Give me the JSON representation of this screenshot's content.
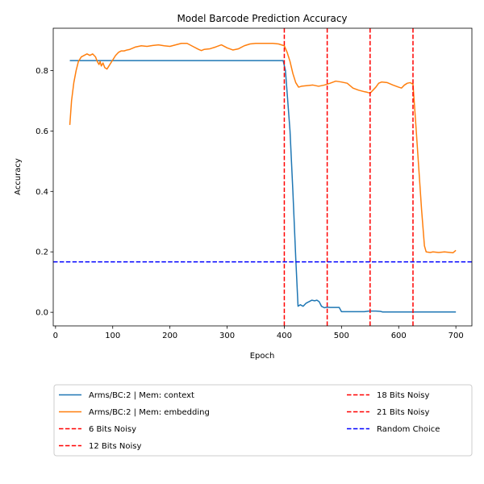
{
  "chart_data": {
    "type": "line",
    "title": "Model Barcode Prediction Accuracy",
    "xlabel": "Epoch",
    "ylabel": "Accuracy",
    "xlim": [
      -4,
      728
    ],
    "ylim": [
      -0.045,
      0.94
    ],
    "xticks": [
      0,
      100,
      200,
      300,
      400,
      500,
      600,
      700
    ],
    "yticks": [
      0.0,
      0.2,
      0.4,
      0.6,
      0.8
    ],
    "ytick_labels": [
      "0.0",
      "0.2",
      "0.4",
      "0.6",
      "0.8"
    ],
    "grid": false,
    "legend_position": "bottom, two columns",
    "series": [
      {
        "name": "Arms/BC:2 | Mem: context",
        "color": "#1f77b4",
        "style": "solid",
        "points": [
          [
            25,
            0.833
          ],
          [
            100,
            0.833
          ],
          [
            200,
            0.833
          ],
          [
            300,
            0.833
          ],
          [
            398,
            0.833
          ],
          [
            402,
            0.8
          ],
          [
            410,
            0.6
          ],
          [
            415,
            0.4
          ],
          [
            420,
            0.18
          ],
          [
            424,
            0.02
          ],
          [
            428,
            0.025
          ],
          [
            433,
            0.02
          ],
          [
            438,
            0.03
          ],
          [
            443,
            0.035
          ],
          [
            448,
            0.04
          ],
          [
            453,
            0.038
          ],
          [
            457,
            0.04
          ],
          [
            461,
            0.035
          ],
          [
            465,
            0.02
          ],
          [
            470,
            0.015
          ],
          [
            475,
            0.017
          ],
          [
            480,
            0.016
          ],
          [
            490,
            0.016
          ],
          [
            496,
            0.016
          ],
          [
            500,
            0.002
          ],
          [
            520,
            0.002
          ],
          [
            540,
            0.002
          ],
          [
            548,
            0.004
          ],
          [
            560,
            0.004
          ],
          [
            568,
            0.003
          ],
          [
            572,
            0.001
          ],
          [
            600,
            0.001
          ],
          [
            650,
            0.001
          ],
          [
            700,
            0.001
          ]
        ]
      },
      {
        "name": "Arms/BC:2 | Mem: embedding",
        "color": "#ff7f0e",
        "style": "solid",
        "points": [
          [
            25,
            0.62
          ],
          [
            28,
            0.7
          ],
          [
            32,
            0.76
          ],
          [
            36,
            0.8
          ],
          [
            40,
            0.83
          ],
          [
            45,
            0.845
          ],
          [
            50,
            0.85
          ],
          [
            55,
            0.855
          ],
          [
            60,
            0.85
          ],
          [
            65,
            0.855
          ],
          [
            70,
            0.845
          ],
          [
            73,
            0.83
          ],
          [
            76,
            0.82
          ],
          [
            78,
            0.83
          ],
          [
            80,
            0.815
          ],
          [
            83,
            0.825
          ],
          [
            86,
            0.81
          ],
          [
            90,
            0.805
          ],
          [
            95,
            0.82
          ],
          [
            100,
            0.835
          ],
          [
            105,
            0.85
          ],
          [
            110,
            0.86
          ],
          [
            115,
            0.865
          ],
          [
            120,
            0.865
          ],
          [
            125,
            0.868
          ],
          [
            130,
            0.87
          ],
          [
            140,
            0.878
          ],
          [
            150,
            0.882
          ],
          [
            160,
            0.88
          ],
          [
            170,
            0.883
          ],
          [
            180,
            0.885
          ],
          [
            190,
            0.882
          ],
          [
            200,
            0.88
          ],
          [
            210,
            0.885
          ],
          [
            220,
            0.89
          ],
          [
            230,
            0.89
          ],
          [
            240,
            0.88
          ],
          [
            250,
            0.87
          ],
          [
            255,
            0.866
          ],
          [
            260,
            0.87
          ],
          [
            270,
            0.872
          ],
          [
            280,
            0.878
          ],
          [
            290,
            0.885
          ],
          [
            300,
            0.875
          ],
          [
            310,
            0.868
          ],
          [
            320,
            0.872
          ],
          [
            330,
            0.882
          ],
          [
            340,
            0.888
          ],
          [
            350,
            0.89
          ],
          [
            360,
            0.89
          ],
          [
            370,
            0.89
          ],
          [
            380,
            0.89
          ],
          [
            390,
            0.888
          ],
          [
            400,
            0.882
          ],
          [
            405,
            0.86
          ],
          [
            410,
            0.83
          ],
          [
            415,
            0.79
          ],
          [
            420,
            0.76
          ],
          [
            425,
            0.745
          ],
          [
            430,
            0.748
          ],
          [
            440,
            0.75
          ],
          [
            450,
            0.752
          ],
          [
            460,
            0.748
          ],
          [
            470,
            0.752
          ],
          [
            475,
            0.755
          ],
          [
            480,
            0.758
          ],
          [
            490,
            0.765
          ],
          [
            500,
            0.762
          ],
          [
            510,
            0.758
          ],
          [
            515,
            0.75
          ],
          [
            520,
            0.742
          ],
          [
            530,
            0.735
          ],
          [
            540,
            0.73
          ],
          [
            545,
            0.728
          ],
          [
            550,
            0.725
          ],
          [
            555,
            0.735
          ],
          [
            560,
            0.745
          ],
          [
            565,
            0.758
          ],
          [
            570,
            0.762
          ],
          [
            580,
            0.76
          ],
          [
            590,
            0.752
          ],
          [
            600,
            0.745
          ],
          [
            605,
            0.742
          ],
          [
            610,
            0.752
          ],
          [
            615,
            0.758
          ],
          [
            620,
            0.76
          ],
          [
            625,
            0.755
          ],
          [
            630,
            0.62
          ],
          [
            635,
            0.48
          ],
          [
            640,
            0.34
          ],
          [
            645,
            0.22
          ],
          [
            648,
            0.2
          ],
          [
            655,
            0.198
          ],
          [
            660,
            0.2
          ],
          [
            670,
            0.198
          ],
          [
            680,
            0.2
          ],
          [
            690,
            0.198
          ],
          [
            695,
            0.197
          ],
          [
            700,
            0.205
          ]
        ]
      }
    ],
    "vlines": [
      {
        "name": "6 Bits Noisy",
        "x": 400,
        "color": "#ff0000",
        "style": "dashed"
      },
      {
        "name": "12 Bits Noisy",
        "x": 475,
        "color": "#ff0000",
        "style": "dashed"
      },
      {
        "name": "18 Bits Noisy",
        "x": 550,
        "color": "#ff0000",
        "style": "dashed"
      },
      {
        "name": "21 Bits Noisy",
        "x": 625,
        "color": "#ff0000",
        "style": "dashed"
      }
    ],
    "hlines": [
      {
        "name": "Random Choice",
        "y": 0.167,
        "color": "#0000ff",
        "style": "dashed"
      }
    ],
    "legend": {
      "left_column": [
        "Arms/BC:2 | Mem: context",
        "Arms/BC:2 | Mem: embedding",
        "6 Bits Noisy",
        "12 Bits Noisy"
      ],
      "right_column": [
        "18 Bits Noisy",
        "21 Bits Noisy",
        "Random Choice"
      ]
    }
  }
}
